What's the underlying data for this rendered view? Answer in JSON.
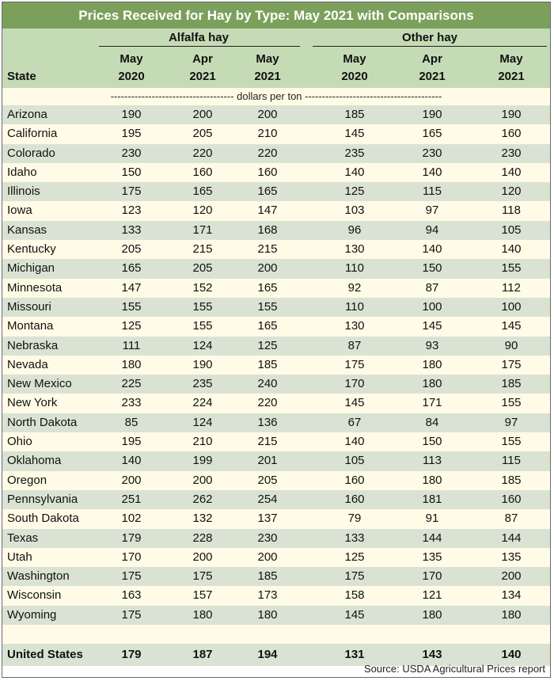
{
  "title": "Prices Received for Hay by Type: May 2021 with Comparisons",
  "groups": {
    "alfalfa": "Alfalfa hay",
    "other": "Other hay"
  },
  "columns": [
    {
      "line1": "May",
      "line2": "2020"
    },
    {
      "line1": "Apr",
      "line2": "2021"
    },
    {
      "line1": "May",
      "line2": "2021"
    },
    {
      "line1": "May",
      "line2": "2020"
    },
    {
      "line1": "Apr",
      "line2": "2021"
    },
    {
      "line1": "May",
      "line2": "2021"
    }
  ],
  "state_header": "State",
  "units": "------------------------------------ dollars per ton ----------------------------------------",
  "rows": [
    {
      "state": "Arizona",
      "values": [
        "190",
        "200",
        "200",
        "185",
        "190",
        "190"
      ]
    },
    {
      "state": "California",
      "values": [
        "195",
        "205",
        "210",
        "145",
        "165",
        "160"
      ]
    },
    {
      "state": "Colorado",
      "values": [
        "230",
        "220",
        "220",
        "235",
        "230",
        "230"
      ]
    },
    {
      "state": "Idaho",
      "values": [
        "150",
        "160",
        "160",
        "140",
        "140",
        "140"
      ]
    },
    {
      "state": "Illinois",
      "values": [
        "175",
        "165",
        "165",
        "125",
        "115",
        "120"
      ]
    },
    {
      "state": "Iowa",
      "values": [
        "123",
        "120",
        "147",
        "103",
        "97",
        "118"
      ]
    },
    {
      "state": "Kansas",
      "values": [
        "133",
        "171",
        "168",
        "96",
        "94",
        "105"
      ]
    },
    {
      "state": "Kentucky",
      "values": [
        "205",
        "215",
        "215",
        "130",
        "140",
        "140"
      ]
    },
    {
      "state": "Michigan",
      "values": [
        "165",
        "205",
        "200",
        "110",
        "150",
        "155"
      ]
    },
    {
      "state": "Minnesota",
      "values": [
        "147",
        "152",
        "165",
        "92",
        "87",
        "112"
      ]
    },
    {
      "state": "Missouri",
      "values": [
        "155",
        "155",
        "155",
        "110",
        "100",
        "100"
      ]
    },
    {
      "state": "Montana",
      "values": [
        "125",
        "155",
        "165",
        "130",
        "145",
        "145"
      ]
    },
    {
      "state": "Nebraska",
      "values": [
        "111",
        "124",
        "125",
        "87",
        "93",
        "90"
      ]
    },
    {
      "state": "Nevada",
      "values": [
        "180",
        "190",
        "185",
        "175",
        "180",
        "175"
      ]
    },
    {
      "state": "New Mexico",
      "values": [
        "225",
        "235",
        "240",
        "170",
        "180",
        "185"
      ]
    },
    {
      "state": "New York",
      "values": [
        "233",
        "224",
        "220",
        "145",
        "171",
        "155"
      ]
    },
    {
      "state": "North Dakota",
      "values": [
        "85",
        "124",
        "136",
        "67",
        "84",
        "97"
      ]
    },
    {
      "state": "Ohio",
      "values": [
        "195",
        "210",
        "215",
        "140",
        "150",
        "155"
      ]
    },
    {
      "state": "Oklahoma",
      "values": [
        "140",
        "199",
        "201",
        "105",
        "113",
        "115"
      ]
    },
    {
      "state": "Oregon",
      "values": [
        "200",
        "200",
        "205",
        "160",
        "180",
        "185"
      ]
    },
    {
      "state": "Pennsylvania",
      "values": [
        "251",
        "262",
        "254",
        "160",
        "181",
        "160"
      ]
    },
    {
      "state": "South Dakota",
      "values": [
        "102",
        "132",
        "137",
        "79",
        "91",
        "87"
      ]
    },
    {
      "state": "Texas",
      "values": [
        "179",
        "228",
        "230",
        "133",
        "144",
        "144"
      ]
    },
    {
      "state": "Utah",
      "values": [
        "170",
        "200",
        "200",
        "125",
        "135",
        "135"
      ]
    },
    {
      "state": "Washington",
      "values": [
        "175",
        "175",
        "185",
        "175",
        "170",
        "200"
      ]
    },
    {
      "state": "Wisconsin",
      "values": [
        "163",
        "157",
        "173",
        "158",
        "121",
        "134"
      ]
    },
    {
      "state": "Wyoming",
      "values": [
        "175",
        "180",
        "180",
        "145",
        "180",
        "180"
      ]
    }
  ],
  "total": {
    "state": "United States",
    "values": [
      "179",
      "187",
      "194",
      "131",
      "143",
      "140"
    ]
  },
  "source": "Source: USDA Agricultural Prices report"
}
